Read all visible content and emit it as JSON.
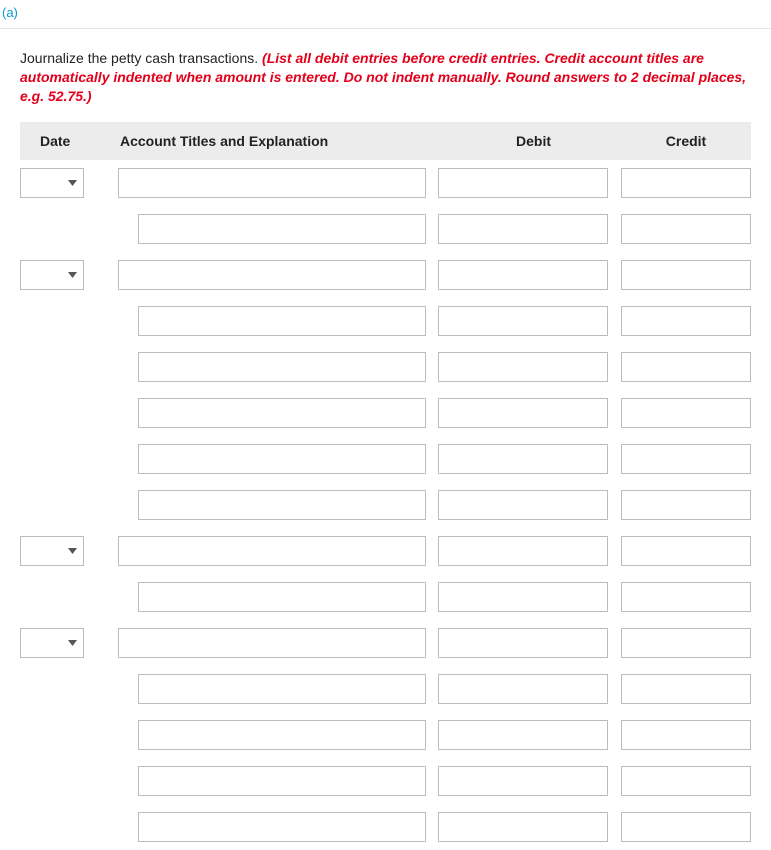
{
  "part_label": "(a)",
  "instructions": {
    "main": "Journalize the petty cash transactions. ",
    "hint": "(List all debit entries before credit entries. Credit account titles are automatically indented when amount is entered. Do not indent manually. Round answers to 2 decimal places, e.g. 52.75.)"
  },
  "headers": {
    "date": "Date",
    "account": "Account Titles and Explanation",
    "debit": "Debit",
    "credit": "Credit"
  },
  "row_layout": [
    {
      "has_date": true,
      "indent": false
    },
    {
      "has_date": false,
      "indent": true
    },
    {
      "has_date": true,
      "indent": false
    },
    {
      "has_date": false,
      "indent": true
    },
    {
      "has_date": false,
      "indent": true
    },
    {
      "has_date": false,
      "indent": true
    },
    {
      "has_date": false,
      "indent": true
    },
    {
      "has_date": false,
      "indent": true
    },
    {
      "has_date": true,
      "indent": false
    },
    {
      "has_date": false,
      "indent": true
    },
    {
      "has_date": true,
      "indent": false
    },
    {
      "has_date": false,
      "indent": true
    },
    {
      "has_date": false,
      "indent": true
    },
    {
      "has_date": false,
      "indent": true
    },
    {
      "has_date": false,
      "indent": true
    }
  ],
  "colors": {
    "part_label": "#0d94d2",
    "hint_text": "#e3001b",
    "header_bg": "#ececec",
    "border": "#bcbcbc"
  }
}
